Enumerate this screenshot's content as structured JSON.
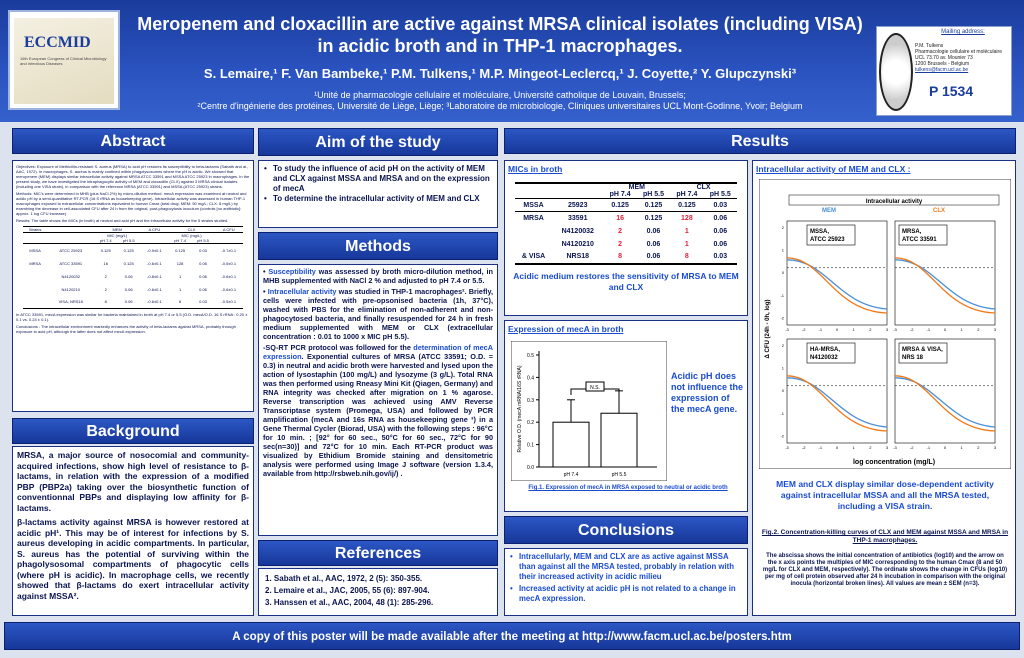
{
  "header": {
    "title_line1": "Meropenem and cloxacillin are active against MRSA clinical isolates (including VISA)",
    "title_line2": "in acidic broth and in THP-1 macrophages.",
    "authors": "S. Lemaire,¹ F. Van Bambeke,¹ P.M. Tulkens,¹ M.P. Mingeot-Leclercq,¹ J. Coyette,² Y. Glupczynski³",
    "affil1": "¹Unité de pharmacologie cellulaire et moléculaire, Université catholique de Louvain, Brussels;",
    "affil2": "²Centre d'ingénierie des protéines, Université de Liège, Liège; ³Laboratoire de microbiologie, Cliniques universitaires UCL Mont-Godinne, Yvoir; Belgium",
    "logo_text": "ECCMID",
    "logo_sub": "16th European Congress of Clinical Microbiology and Infectious Diseases"
  },
  "mailing": {
    "title": "Mailing address:",
    "lines": [
      "P.M. Tulkens",
      "Pharmacologie cellulaire et moléculaire",
      "UCL 73.70 av. Mounier 73",
      "1200 Brussels - Belgium",
      "tulkens@facm.ucl.ac.be"
    ],
    "poster": "P 1534"
  },
  "abstract": {
    "title": "Abstract",
    "objectives": "Objectives: Exposure of Methicillin-resistant S. aureus (MRSA) to acid pH restores its susceptibility to beta-lactams (Sabath and al., AAC, 1972). In macrophages, S. aureus is mainly confined within phagolysosomes where the pH is acidic. We showed that meropenem (MEM) displays similar intracellular activity against MRSA ATCC 33591 and MSSA ATCC 25923 in macrophages. In the present study, we have investigated the intraphagocytic activity of MEM and cloxacillin (CLX) against 3 MRSA clinical isolates (including one VISA strain), in comparison with the reference MRSA (ATCC 33591) and MSSA (ATCC 25923) strains.",
    "methods": "Methods: MIC's were determined in MHB (plus NaCl 2%) by micro-dilution method. mecA expression was examined at neutral and acidic pH by a semi-quantitative RT-PCR (16 S rRNA as housekeeping gene). Intracellular activity was assessed in human THP-1 macrophages exposed to extracellular concentrations equivalent to human Cmax (total drug; MEM: 50 mg/L; CLX: 8 mg/L) by examining the decrease in cell-associated CFU after 24 h from the original, post-phagocytosis inoculum (controls [no antibiotic]: approx. 1 log CFU increase).",
    "results": "Results: The table shows the MICs (in broth) at neutral and acid pH and the intracellular activity for the 5 strains studied.",
    "table_headers": [
      "Strains",
      "MEM",
      "",
      "Δ CFU",
      "CLX",
      "",
      "Δ CFU"
    ],
    "table_sub": [
      "",
      "MIC (mg/L)",
      "",
      "",
      "MIC (mg/L)",
      "",
      ""
    ],
    "table_ph": [
      "",
      "pH 7.4",
      "pH 5.5",
      "",
      "pH 7.4",
      "pH 5.5",
      ""
    ],
    "table_rows": [
      [
        "MSSA",
        "ATCC 25923",
        "0.125",
        "0.125",
        "-0.9±0.1",
        "0.125",
        "0.03",
        "-0.7±0.1"
      ],
      [
        "MRSA",
        "ATCC 33591",
        "16",
        "0.125",
        "-0.6±0.1",
        "128",
        "0.06",
        "-0.5±0.1"
      ],
      [
        "",
        "N4120032",
        "2",
        "0.06",
        "-0.8±0.1",
        "1",
        "0.06",
        "-0.6±0.1"
      ],
      [
        "",
        "N4120210",
        "2",
        "0.06",
        "-0.6±0.1",
        "1",
        "0.06",
        "-0.6±0.1"
      ],
      [
        "",
        "VISA, NRS18",
        "8",
        "0.06",
        "-0.6±0.1",
        "8",
        "0.03",
        "-0.5±0.1"
      ]
    ],
    "note": "In ATCC 33591, mecA expression was similar for bacteria maintained in broth at pH 7.4 or 5.5 (O.D. mecA/O.D. 16 S rRNA : 0.20 ± 0.1 vs. 0.24 ± 0.1).",
    "conclusions": "Conclusions : The intracellular environment markedly enhances the activity of beta-lactams against MRSA, probably through exposure to acid pH, although the latter does not affect mecA expression."
  },
  "background": {
    "title": "Background",
    "p1": "MRSA, a major source of nosocomial and community-acquired infections, show high level of resistance to β-lactams, in relation with the expression of a modified PBP (PBP2a) taking over the biosynthetic function of conventionnal PBPs and displaying low affinity for β-lactams.",
    "p2": "β-lactams activity against MRSA is however restored at acidic pH¹. This may be of interest for infections by S. aureus developing in acidic compartments. In particular, S. aureus has the potential of surviving within the phagolysosomal compartments of phagocytic cells (where pH is acidic). In macrophage cells, we recently showed that β-lactams do exert intracellular activity against MSSA²."
  },
  "aim": {
    "title": "Aim of the study",
    "items": [
      "To study the influence of acid pH on the activity of MEM and CLX against MSSA and MRSA and on the expression of mecA",
      "To determine the intracellular activity of MEM and CLX"
    ]
  },
  "methods": {
    "title": "Methods",
    "m1_label": "Susceptibility",
    "m1": " was assessed by broth micro-dilution method, in MHB supplemented with NaCl 2 % and adjusted to pH 7.4 or 5.5.",
    "m2_label": "Intracellular activity",
    "m2": " was studied in THP-1 macrophages². Briefly, cells were infected with pre-opsonised bacteria (1h, 37°C), washed with PBS for the elimination of non-adherent and non-phagocytosed bacteria, and finally resuspended for 24 h in fresh medium supplemented with MEM or CLX (extracellular concentration : 0.01 to 1000 x MIC pH 5.5).",
    "m3_pre": "-SQ-RT PCR protocol was followed for the ",
    "m3_label": "determination of mecA expression",
    "m3": ". Exponential cultures of MRSA (ATCC 33591; O.D. = 0.3) in neutral and acidic broth were harvested and lysed upon the action of lysostaphin (100 mg/L) and lysozyme (3 g/L). Total RNA was then performed using Rneasy Mini Kit (Qiagen, Germany) and RNA integrity was checked after migration on 1 % agarose. Reverse transcription was achieved using AMV Reverse Transcriptase system (Promega, USA) and followed by PCR amplification (mecA and 16s RNA as housekeeping gene ³) in a Gene Thermal Cycler (Biorad, USA) with the following steps : 96°C for 10 min. ; [92° for 60 sec., 50°C for 60 sec., 72°C for 90 sec(n=30)] and 72°C for 10 min. Each RT-PCR product was visualized by Ethidium Bromide staining and densitometric analysis were performed using Image J software (version 1.3.4, available from http://rsbweb.nih.gov/ij/) ."
  },
  "references": {
    "title": "References",
    "items": [
      "Sabath et al., AAC, 1972, 2 (5): 350-355.",
      "Lemaire et al., JAC, 2005, 55 (6): 897-904.",
      "Hanssen et al., AAC, 2004, 48 (1): 285-296."
    ]
  },
  "results": {
    "title": "Results",
    "mic_title": "MICs in broth",
    "mic_headers": [
      "",
      "",
      "MEM",
      "CLX"
    ],
    "mic_ph": [
      "",
      "",
      "pH 7.4",
      "pH 5.5",
      "pH 7.4",
      "pH 5.5"
    ],
    "mic_rows": [
      [
        "MSSA",
        "25923",
        "0.125",
        "0.125",
        "0.125",
        "0.03"
      ],
      [
        "MRSA",
        "33591",
        "16",
        "0.125",
        "128",
        "0.06"
      ],
      [
        "",
        "N4120032",
        "2",
        "0.06",
        "1",
        "0.06"
      ],
      [
        "",
        "N4120210",
        "2",
        "0.06",
        "1",
        "0.06"
      ],
      [
        "& VISA",
        "NRS18",
        "8",
        "0.06",
        "8",
        "0.03"
      ]
    ],
    "mic_caption": "Acidic medium restores the sensitivity of MRSA to MEM and CLX",
    "meca_title": "Expression of mecA in broth",
    "meca_note": "Acidic pH does not influence the expression of the mecA gene.",
    "meca_caption": "Fig.1. Expression of mecA in MRSA exposed to neutral or acidic broth",
    "intra_title": "Intracellular activity of MEM and CLX :",
    "intra_caption": "MEM and CLX display similar dose-dependent activity against intracellular MSSA and all the MRSA tested, including a VISA strain.",
    "fig2_title": "Fig.2. Concentration-killing curves of CLX and MEM against MSSA and MRSA in THP-1 macrophages.",
    "fig2_text": "The abscissa shows the initial concentration of antibiotics (log10) and the arrow on the x axis points the multiples of MIC corresponding to the human Cmax (8 and 50 mg/L for CLX and MEM, respectively). The ordinate shows the change in CFUs (log10) per mg of cell protein observed after 24 h incubation in comparison with the original inocula (horizontal broken lines). All values are mean ± SEM (n=3)."
  },
  "chart_data": [
    {
      "type": "bar",
      "categories": [
        "pH 7.4",
        "pH 5.5"
      ],
      "values": [
        0.2,
        0.24
      ],
      "errors": [
        0.1,
        0.1
      ],
      "ylabel": "Relative O.D. (mecA mRNA/16S rRNA)",
      "ylim": [
        0,
        0.5
      ],
      "yticks": [
        "0.0",
        "0.1",
        "0.2",
        "0.3",
        "0.4",
        "0.5"
      ],
      "annotation": "N.S."
    },
    {
      "type": "line",
      "title": "Intracellular activity",
      "series": [
        {
          "name": "MEM",
          "color": "#4a8fd8"
        },
        {
          "name": "CLX",
          "color": "#f07a1a"
        }
      ],
      "panels": [
        "MSSA, ATCC 25923",
        "MRSA, ATCC 33591",
        "HA-MRSA, N4120032",
        "MRSA & VISA, NRS 18"
      ],
      "xlabel": "log concentration (mg/L)",
      "ylabel": "Δ CFU (24h - 0h, log)",
      "xticks": [
        "-3",
        "-2",
        "-1",
        "0",
        "1",
        "2",
        "3"
      ],
      "yticks_left": [
        "2",
        "1",
        "0",
        "-1",
        "-2"
      ]
    }
  ],
  "conclusions": {
    "title": "Conclusions",
    "items": [
      "Intracellularly, MEM and CLX are as active against MSSA than against all the MRSA tested, probably in relation with their increased activity in acidic milieu",
      "Increased activity at acidic pH is not related to a change in mecA expression."
    ]
  },
  "footer": "A copy of this poster will be made available after the meeting at http://www.facm.ucl.ac.be/posters.htm"
}
